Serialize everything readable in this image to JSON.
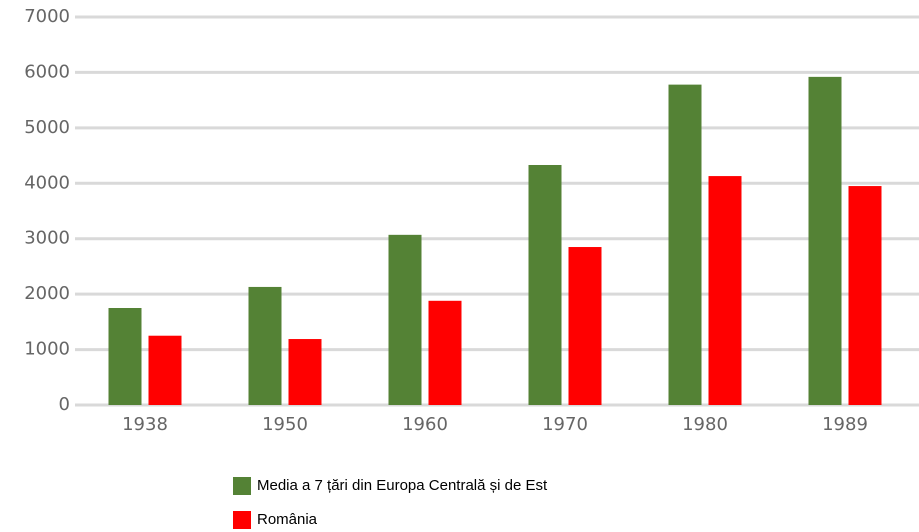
{
  "chart_data": {
    "type": "bar",
    "categories": [
      "1938",
      "1950",
      "1960",
      "1970",
      "1980",
      "1989"
    ],
    "series": [
      {
        "name": "Media a 7 țări din Europa Centrală și de Est",
        "color": "#548235",
        "values": [
          1750,
          2130,
          3070,
          4330,
          5780,
          5920
        ]
      },
      {
        "name": "România",
        "color": "#ff0000",
        "values": [
          1250,
          1190,
          1880,
          2850,
          4130,
          3950
        ]
      }
    ],
    "ylim": [
      0,
      7000
    ],
    "yticks": [
      0,
      1000,
      2000,
      3000,
      4000,
      5000,
      6000,
      7000
    ],
    "grid": true,
    "legend": "bottom"
  }
}
